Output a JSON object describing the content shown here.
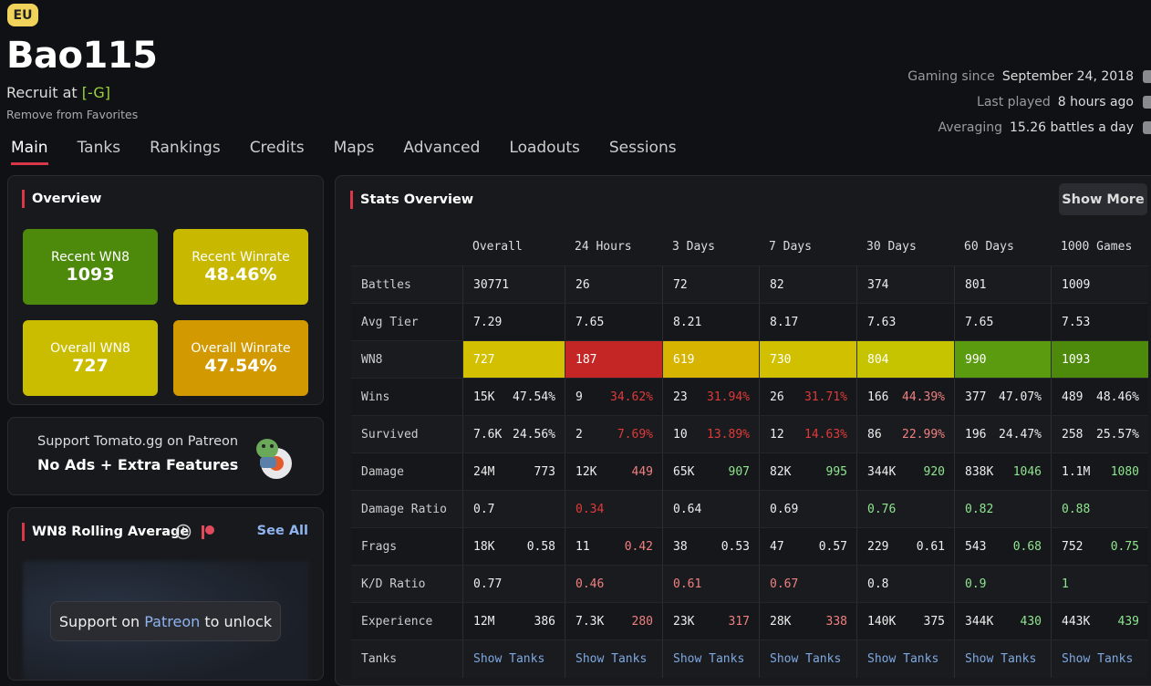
{
  "header": {
    "region": "EU",
    "name": "Bao115",
    "role": "Recruit at",
    "clan": "[-G]",
    "favorite": "Remove from Favorites",
    "meta": [
      {
        "label": "Gaming since",
        "value": "September 24, 2018"
      },
      {
        "label": "Last played",
        "value": "8 hours ago"
      },
      {
        "label": "Averaging",
        "value": "15.26 battles a day"
      }
    ]
  },
  "tabs": [
    "Main",
    "Tanks",
    "Rankings",
    "Credits",
    "Maps",
    "Advanced",
    "Loadouts",
    "Sessions"
  ],
  "overview": {
    "title": "Overview",
    "cards": [
      {
        "label": "Recent WN8",
        "value": "1093",
        "color": "#4d8a0b"
      },
      {
        "label": "Recent Winrate",
        "value": "48.46%",
        "color": "#c9b800"
      },
      {
        "label": "Overall WN8",
        "value": "727",
        "color": "#cabd00"
      },
      {
        "label": "Overall Winrate",
        "value": "47.54%",
        "color": "#d29a00"
      }
    ]
  },
  "patreon": {
    "line1": "Support Tomato.gg on Patreon",
    "line2": "No Ads + Extra Features"
  },
  "rolling": {
    "title": "WN8 Rolling Average",
    "link": "See All",
    "lock_pre": "Support on",
    "lock_link": "Patreon",
    "lock_post": "to unlock"
  },
  "stats": {
    "title": "Stats Overview",
    "button": "Show More",
    "columns": [
      "Overall",
      "24 Hours",
      "3 Days",
      "7 Days",
      "30 Days",
      "60 Days",
      "1000 Games"
    ],
    "rows": [
      {
        "label": "Battles",
        "cells": [
          {
            "value": "30771"
          },
          {
            "value": "26"
          },
          {
            "value": "72"
          },
          {
            "value": "82"
          },
          {
            "value": "374"
          },
          {
            "value": "801"
          },
          {
            "value": "1009"
          }
        ]
      },
      {
        "label": "Avg Tier",
        "cells": [
          {
            "value": "7.29"
          },
          {
            "value": "7.65"
          },
          {
            "value": "8.21"
          },
          {
            "value": "8.17"
          },
          {
            "value": "7.63"
          },
          {
            "value": "7.65"
          },
          {
            "value": "7.53"
          }
        ]
      },
      {
        "label": "WN8",
        "cells": [
          {
            "value": "727",
            "bg": "#d3c000"
          },
          {
            "value": "187",
            "bg": "#c42626"
          },
          {
            "value": "619",
            "bg": "#d6b400"
          },
          {
            "value": "730",
            "bg": "#d1c000"
          },
          {
            "value": "804",
            "bg": "#c6c400"
          },
          {
            "value": "990",
            "bg": "#5b9b10"
          },
          {
            "value": "1093",
            "bg": "#4d8a0b"
          }
        ]
      },
      {
        "label": "Wins",
        "cells": [
          {
            "value": "15K",
            "extra": "47.54%"
          },
          {
            "value": "9",
            "extra": "34.62%",
            "color": "#e03a3a"
          },
          {
            "value": "23",
            "extra": "31.94%",
            "color": "#e03a3a"
          },
          {
            "value": "26",
            "extra": "31.71%",
            "color": "#e03a3a"
          },
          {
            "value": "166",
            "extra": "44.39%",
            "color": "#f08080"
          },
          {
            "value": "377",
            "extra": "47.07%"
          },
          {
            "value": "489",
            "extra": "48.46%"
          }
        ]
      },
      {
        "label": "Survived",
        "cells": [
          {
            "value": "7.6K",
            "extra": "24.56%"
          },
          {
            "value": "2",
            "extra": "7.69%",
            "color": "#e03a3a"
          },
          {
            "value": "10",
            "extra": "13.89%",
            "color": "#e03a3a"
          },
          {
            "value": "12",
            "extra": "14.63%",
            "color": "#e03a3a"
          },
          {
            "value": "86",
            "extra": "22.99%",
            "color": "#f08080"
          },
          {
            "value": "196",
            "extra": "24.47%"
          },
          {
            "value": "258",
            "extra": "25.57%"
          }
        ]
      },
      {
        "label": "Damage",
        "cells": [
          {
            "value": "24M",
            "extra": "773"
          },
          {
            "value": "12K",
            "extra": "449",
            "color": "#f08080"
          },
          {
            "value": "65K",
            "extra": "907",
            "color": "#8ee68e"
          },
          {
            "value": "82K",
            "extra": "995",
            "color": "#8ee68e"
          },
          {
            "value": "344K",
            "extra": "920",
            "color": "#8ee68e"
          },
          {
            "value": "838K",
            "extra": "1046",
            "color": "#8ee68e"
          },
          {
            "value": "1.1M",
            "extra": "1080",
            "color": "#8ee68e"
          }
        ]
      },
      {
        "label": "Damage Ratio",
        "cells": [
          {
            "value": "0.7"
          },
          {
            "value": "0.34",
            "color": "#e03a3a"
          },
          {
            "value": "0.64"
          },
          {
            "value": "0.69"
          },
          {
            "value": "0.76",
            "color": "#8ee68e"
          },
          {
            "value": "0.82",
            "color": "#8ee68e"
          },
          {
            "value": "0.88",
            "color": "#8ee68e"
          }
        ]
      },
      {
        "label": "Frags",
        "cells": [
          {
            "value": "18K",
            "extra": "0.58"
          },
          {
            "value": "11",
            "extra": "0.42",
            "color": "#f08080"
          },
          {
            "value": "38",
            "extra": "0.53"
          },
          {
            "value": "47",
            "extra": "0.57"
          },
          {
            "value": "229",
            "extra": "0.61"
          },
          {
            "value": "543",
            "extra": "0.68",
            "color": "#8ee68e"
          },
          {
            "value": "752",
            "extra": "0.75",
            "color": "#8ee68e"
          }
        ]
      },
      {
        "label": "K/D Ratio",
        "cells": [
          {
            "value": "0.77"
          },
          {
            "value": "0.46",
            "color": "#f08080"
          },
          {
            "value": "0.61",
            "color": "#f08080"
          },
          {
            "value": "0.67",
            "color": "#f08080"
          },
          {
            "value": "0.8"
          },
          {
            "value": "0.9",
            "color": "#8ee68e"
          },
          {
            "value": "1",
            "color": "#8ee68e"
          }
        ]
      },
      {
        "label": "Experience",
        "cells": [
          {
            "value": "12M",
            "extra": "386"
          },
          {
            "value": "7.3K",
            "extra": "280",
            "color": "#f08080"
          },
          {
            "value": "23K",
            "extra": "317",
            "color": "#f08080"
          },
          {
            "value": "28K",
            "extra": "338",
            "color": "#f08080"
          },
          {
            "value": "140K",
            "extra": "375"
          },
          {
            "value": "344K",
            "extra": "430",
            "color": "#8ee68e"
          },
          {
            "value": "443K",
            "extra": "439",
            "color": "#8ee68e"
          }
        ]
      },
      {
        "label": "Tanks",
        "cells": [
          {
            "value": "Show Tanks",
            "color": "#7fa8e0"
          },
          {
            "value": "Show Tanks",
            "color": "#7fa8e0"
          },
          {
            "value": "Show Tanks",
            "color": "#7fa8e0"
          },
          {
            "value": "Show Tanks",
            "color": "#7fa8e0"
          },
          {
            "value": "Show Tanks",
            "color": "#7fa8e0"
          },
          {
            "value": "Show Tanks",
            "color": "#7fa8e0"
          },
          {
            "value": "Show Tanks",
            "color": "#7fa8e0"
          }
        ]
      }
    ]
  }
}
